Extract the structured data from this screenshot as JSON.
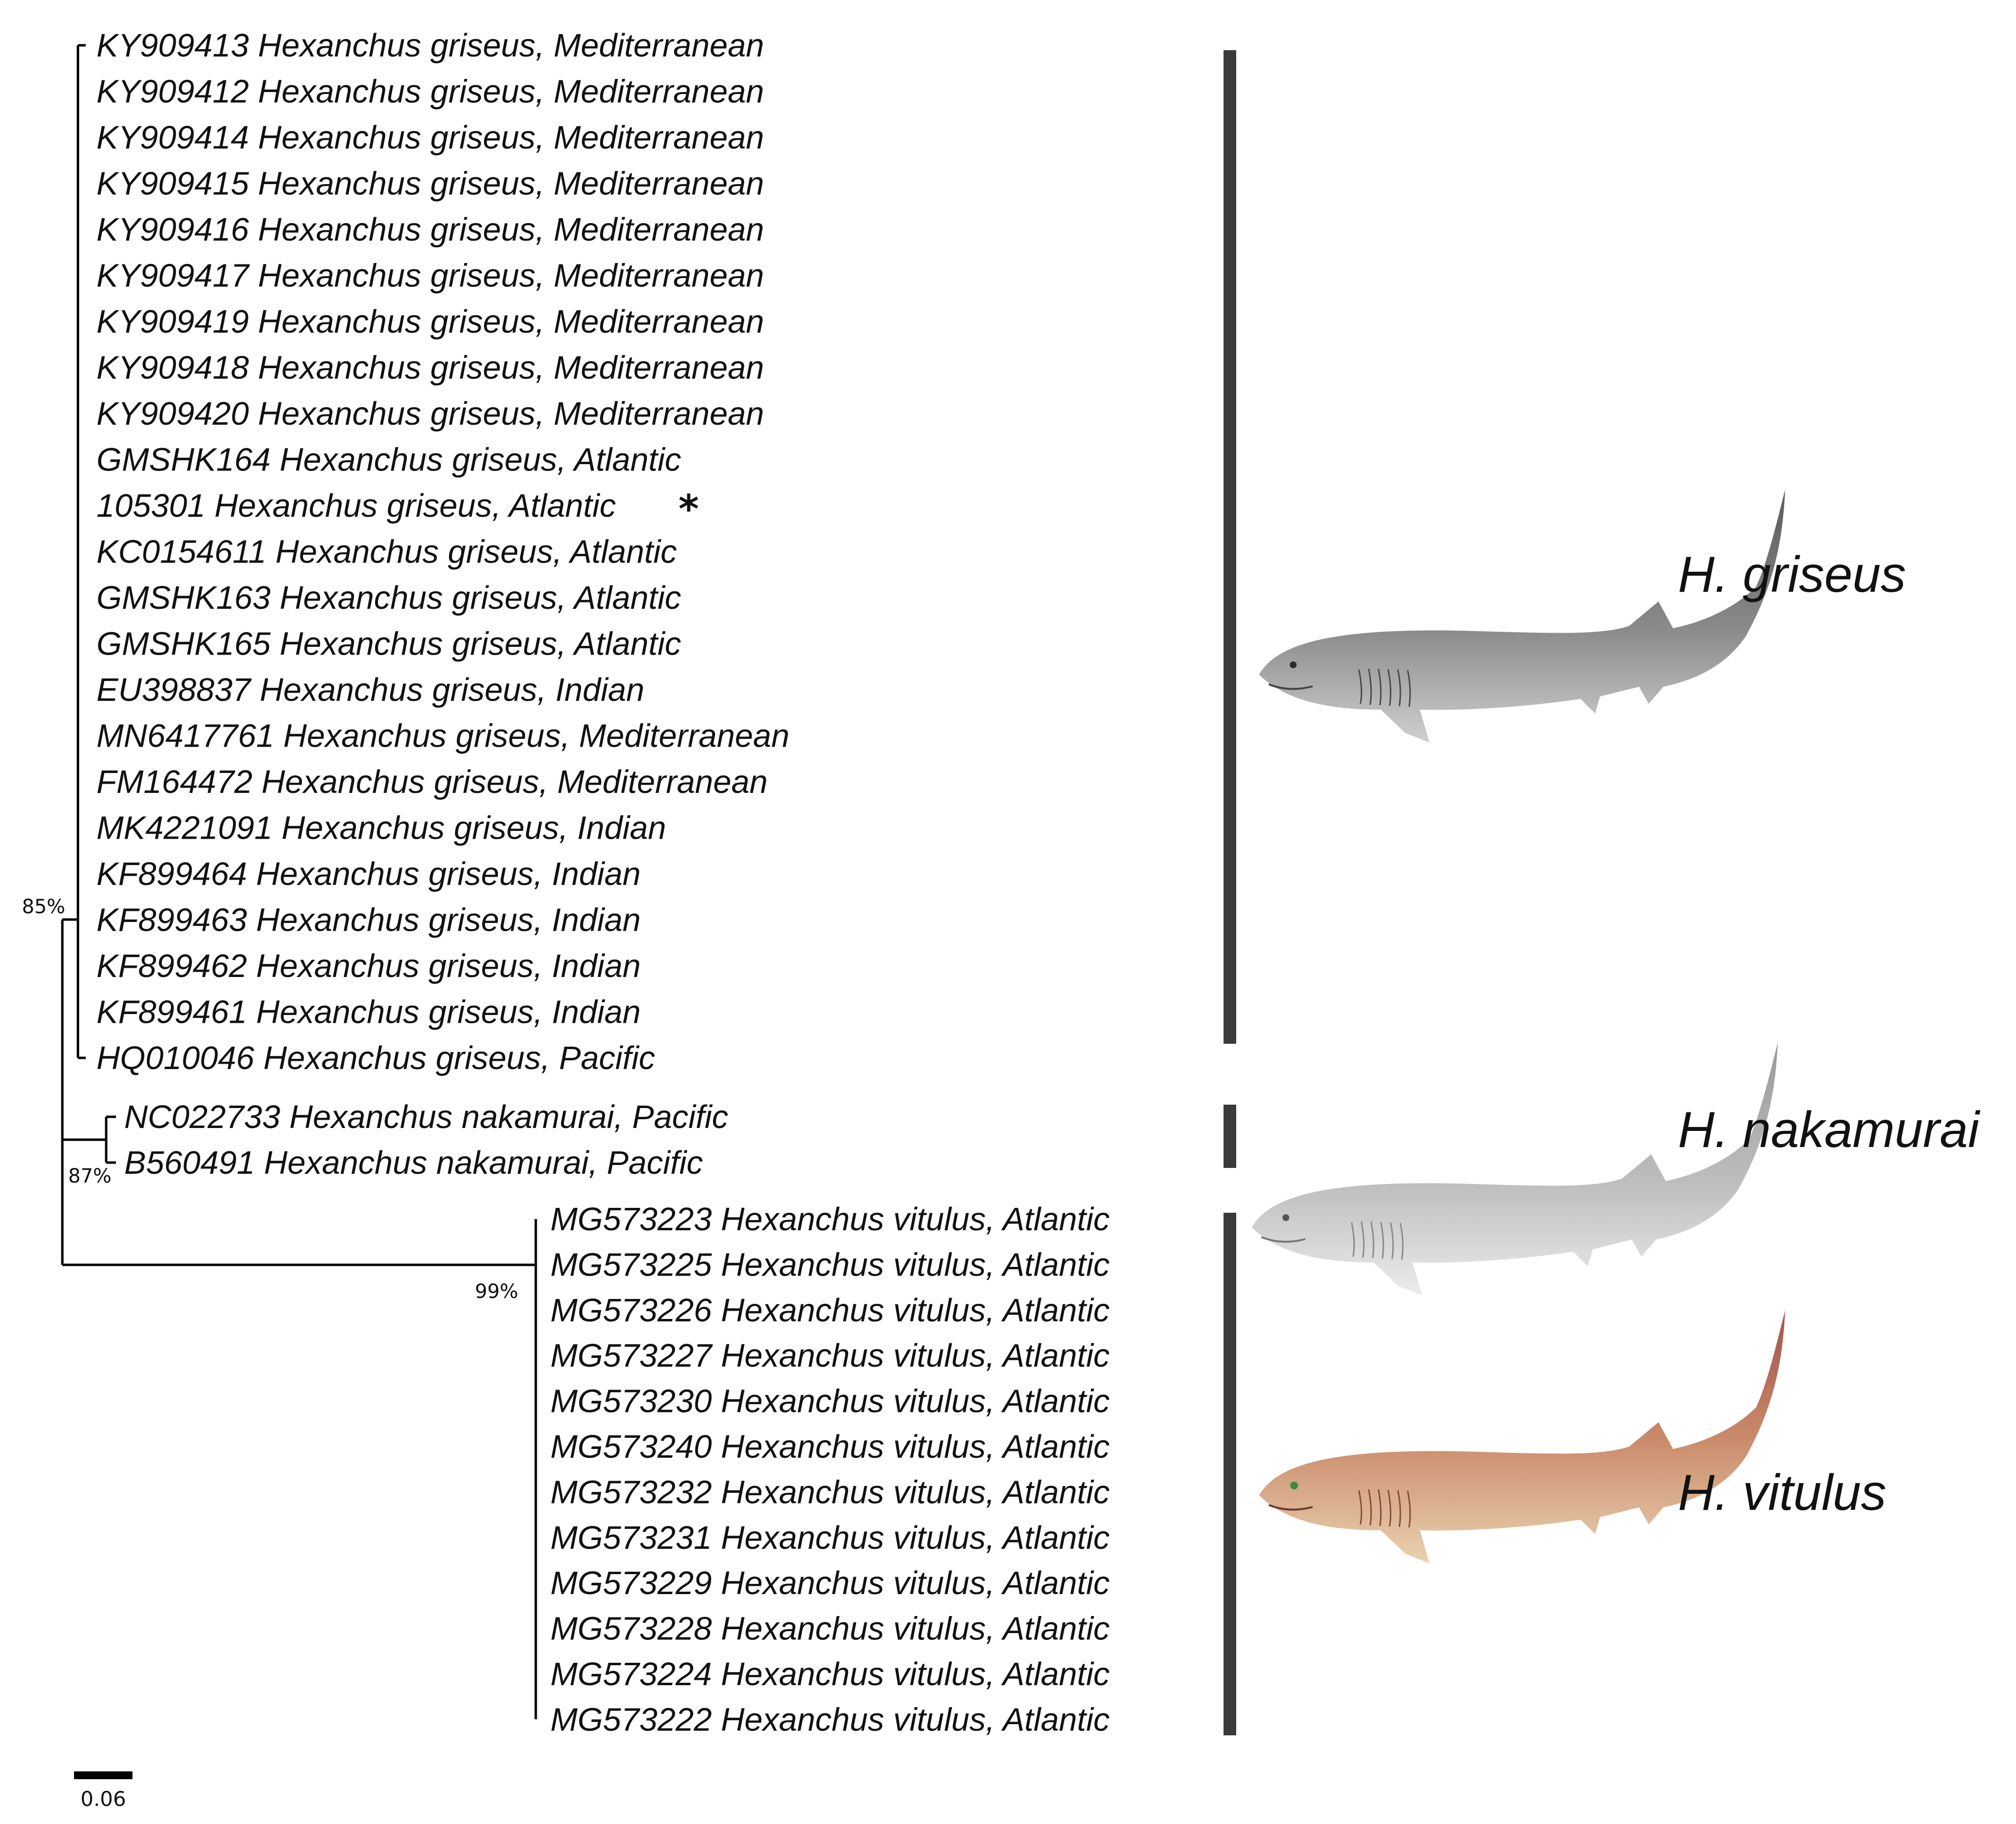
{
  "tree": {
    "clades": [
      {
        "name": "H. griseus",
        "support": "85%",
        "leaves": [
          {
            "accession": "KY909413",
            "label": "KY909413 Hexanchus griseus, Mediterranean",
            "marker": ""
          },
          {
            "accession": "KY909412",
            "label": "KY909412 Hexanchus griseus, Mediterranean",
            "marker": ""
          },
          {
            "accession": "KY909414",
            "label": "KY909414 Hexanchus griseus, Mediterranean",
            "marker": ""
          },
          {
            "accession": "KY909415",
            "label": "KY909415 Hexanchus griseus, Mediterranean",
            "marker": ""
          },
          {
            "accession": "KY909416",
            "label": "KY909416 Hexanchus griseus, Mediterranean",
            "marker": ""
          },
          {
            "accession": "KY909417",
            "label": "KY909417 Hexanchus griseus, Mediterranean",
            "marker": ""
          },
          {
            "accession": "KY909419",
            "label": "KY909419 Hexanchus griseus, Mediterranean",
            "marker": ""
          },
          {
            "accession": "KY909418",
            "label": "KY909418 Hexanchus griseus, Mediterranean",
            "marker": ""
          },
          {
            "accession": "KY909420",
            "label": "KY909420 Hexanchus griseus, Mediterranean",
            "marker": ""
          },
          {
            "accession": "GMSHK164",
            "label": "GMSHK164 Hexanchus griseus, Atlantic",
            "marker": ""
          },
          {
            "accession": "105301",
            "label": "105301 Hexanchus griseus, Atlantic",
            "marker": "*"
          },
          {
            "accession": "KC0154611",
            "label": "KC0154611 Hexanchus griseus, Atlantic",
            "marker": ""
          },
          {
            "accession": "GMSHK163",
            "label": "GMSHK163 Hexanchus griseus, Atlantic",
            "marker": ""
          },
          {
            "accession": "GMSHK165",
            "label": "GMSHK165 Hexanchus griseus, Atlantic",
            "marker": ""
          },
          {
            "accession": "EU398837",
            "label": "EU398837 Hexanchus griseus, Indian",
            "marker": ""
          },
          {
            "accession": "MN6417761",
            "label": "MN6417761 Hexanchus griseus, Mediterranean",
            "marker": ""
          },
          {
            "accession": "FM164472",
            "label": "FM164472 Hexanchus griseus, Mediterranean",
            "marker": ""
          },
          {
            "accession": "MK4221091",
            "label": "MK4221091 Hexanchus griseus, Indian",
            "marker": ""
          },
          {
            "accession": "KF899464",
            "label": "KF899464 Hexanchus griseus, Indian",
            "marker": ""
          },
          {
            "accession": "KF899463",
            "label": "KF899463 Hexanchus griseus, Indian",
            "marker": ""
          },
          {
            "accession": "KF899462",
            "label": "KF899462 Hexanchus griseus, Indian",
            "marker": ""
          },
          {
            "accession": "KF899461",
            "label": "KF899461 Hexanchus griseus, Indian",
            "marker": ""
          },
          {
            "accession": "HQ010046",
            "label": "HQ010046 Hexanchus griseus, Pacific",
            "marker": ""
          }
        ]
      },
      {
        "name": "H. nakamurai",
        "support": "87%",
        "leaves": [
          {
            "accession": "NC022733",
            "label": "NC022733 Hexanchus nakamurai, Pacific",
            "marker": ""
          },
          {
            "accession": "B560491",
            "label": "B560491 Hexanchus nakamurai, Pacific",
            "marker": ""
          }
        ]
      },
      {
        "name": "H. vitulus",
        "support": "99%",
        "leaves": [
          {
            "accession": "MG573223",
            "label": "MG573223 Hexanchus vitulus, Atlantic",
            "marker": ""
          },
          {
            "accession": "MG573225",
            "label": "MG573225 Hexanchus vitulus, Atlantic",
            "marker": ""
          },
          {
            "accession": "MG573226",
            "label": "MG573226 Hexanchus vitulus, Atlantic",
            "marker": ""
          },
          {
            "accession": "MG573227",
            "label": "MG573227 Hexanchus vitulus, Atlantic",
            "marker": ""
          },
          {
            "accession": "MG573230",
            "label": "MG573230 Hexanchus vitulus, Atlantic",
            "marker": ""
          },
          {
            "accession": "MG573240",
            "label": "MG573240 Hexanchus vitulus, Atlantic",
            "marker": ""
          },
          {
            "accession": "MG573232",
            "label": "MG573232 Hexanchus vitulus, Atlantic",
            "marker": ""
          },
          {
            "accession": "MG573231",
            "label": "MG573231 Hexanchus vitulus, Atlantic",
            "marker": ""
          },
          {
            "accession": "MG573229",
            "label": "MG573229 Hexanchus vitulus, Atlantic",
            "marker": ""
          },
          {
            "accession": "MG573228",
            "label": "MG573228 Hexanchus vitulus, Atlantic",
            "marker": ""
          },
          {
            "accession": "MG573224",
            "label": "MG573224 Hexanchus vitulus, Atlantic",
            "marker": ""
          },
          {
            "accession": "MG573222",
            "label": "MG573222 Hexanchus vitulus, Atlantic",
            "marker": ""
          }
        ]
      }
    ],
    "scale_bar": "0.06"
  },
  "illustrations": [
    {
      "clade": "H. griseus",
      "icon": "grey-shark-illustration",
      "body_color": "#6b6b6b",
      "belly_color": "#c9c9c9"
    },
    {
      "clade": "H. nakamurai",
      "icon": "light-grey-shark-illustration",
      "body_color": "#a3a3a3",
      "belly_color": "#e6e6e6"
    },
    {
      "clade": "H. vitulus",
      "icon": "reddish-shark-illustration",
      "body_color": "#b8705a",
      "belly_color": "#e8c9a8"
    }
  ],
  "colors": {
    "branch": "#000000",
    "clade_bar": "#3a3a3a",
    "text": "#111111"
  }
}
